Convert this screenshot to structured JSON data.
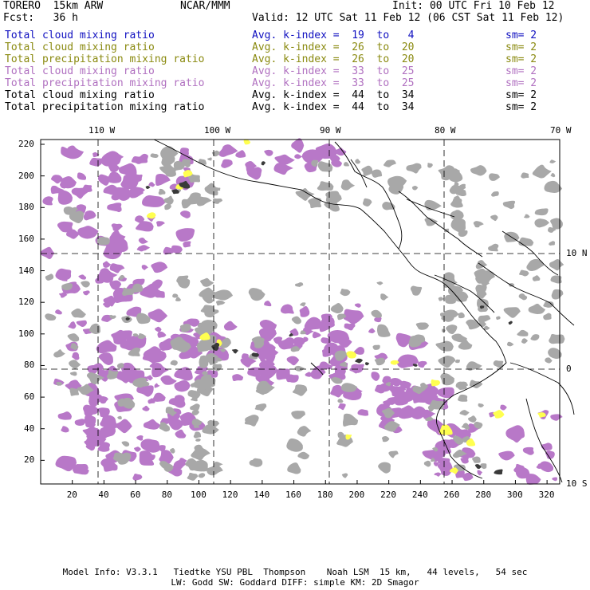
{
  "header": {
    "model": "TORERO  15km ARW",
    "center": "NCAR/MMM",
    "init": "Init: 00 UTC Fri 10 Feb 12",
    "fcst": "Fcst:   36 h",
    "valid": "Valid: 12 UTC Sat 11 Feb 12 (06 CST Sat 11 Feb 12)"
  },
  "legend": [
    {
      "label": "Total cloud mixing ratio",
      "kindex": "Avg. k-index =  19  to   4",
      "sm": "sm= 2",
      "color": "#1010c0"
    },
    {
      "label": "Total cloud mixing ratio",
      "kindex": "Avg. k-index =  26  to  20",
      "sm": "sm= 2",
      "color": "#8a8a10"
    },
    {
      "label": "Total precipitation mixing ratio",
      "kindex": "Avg. k-index =  26  to  20",
      "sm": "sm= 2",
      "color": "#8a8a10"
    },
    {
      "label": "Total cloud mixing ratio",
      "kindex": "Avg. k-index =  33  to  25",
      "sm": "sm= 2",
      "color": "#b070c0"
    },
    {
      "label": "Total precipitation mixing ratio",
      "kindex": "Avg. k-index =  33  to  25",
      "sm": "sm= 2",
      "color": "#b070c0"
    },
    {
      "label": "Total cloud mixing ratio",
      "kindex": "Avg. k-index =  44  to  34",
      "sm": "sm= 2",
      "color": "#000000"
    },
    {
      "label": "Total precipitation mixing ratio",
      "kindex": "Avg. k-index =  44  to  34",
      "sm": "sm= 2",
      "color": "#000000"
    }
  ],
  "lon_labels": [
    "110 W",
    "100 W",
    "90 W",
    "80 W",
    "70 W"
  ],
  "lat_labels": [
    "10 N",
    "0",
    "10 S"
  ],
  "y_ticks": [
    "20",
    "40",
    "60",
    "80",
    "100",
    "120",
    "140",
    "160",
    "180",
    "200",
    "220"
  ],
  "x_ticks": [
    "20",
    "40",
    "60",
    "80",
    "100",
    "120",
    "140",
    "160",
    "180",
    "200",
    "220",
    "240",
    "260",
    "280",
    "300",
    "320"
  ],
  "footer": {
    "line1": "Model Info: V3.3.1   Tiedtke YSU PBL  Thompson    Noah LSM  15 km,   44 levels,   54 sec",
    "line2": "LW: Godd SW: Goddard DIFF: simple KM: 2D Smagor"
  },
  "colors": {
    "purple": "#b878c8",
    "gray": "#a8a8a8",
    "dark": "#404040",
    "yellow": "#ffff50",
    "cyan": "#b8f0ff"
  }
}
